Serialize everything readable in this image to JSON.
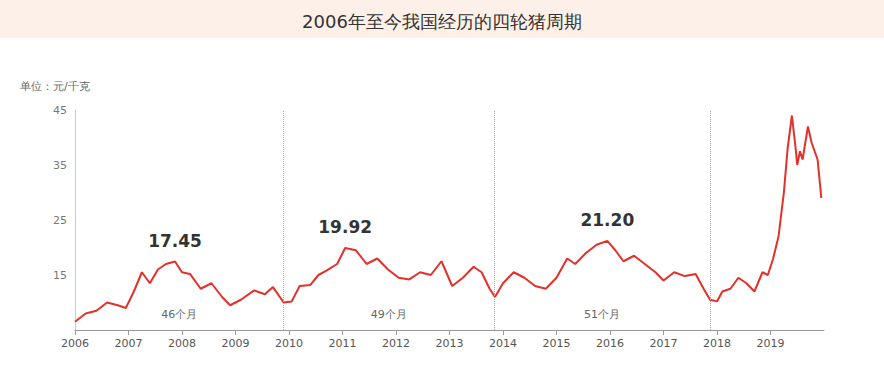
{
  "chart_data": {
    "type": "line",
    "title": "2006年至今我国经历的四轮猪周期",
    "y_label": "单位：元/千克",
    "color": "#e3302b",
    "grid": false,
    "xlim": [
      2006,
      2020
    ],
    "xticks": [
      2006,
      2007,
      2008,
      2009,
      2010,
      2011,
      2012,
      2013,
      2014,
      2015,
      2016,
      2017,
      2018,
      2019
    ],
    "ylim": [
      5,
      45
    ],
    "yticks": [
      15,
      25,
      35,
      45
    ],
    "x": [
      2006.0,
      2006.2,
      2006.4,
      2006.6,
      2006.8,
      2006.95,
      2007.1,
      2007.25,
      2007.4,
      2007.55,
      2007.7,
      2007.87,
      2008.0,
      2008.15,
      2008.35,
      2008.55,
      2008.75,
      2008.9,
      2009.1,
      2009.35,
      2009.55,
      2009.7,
      2009.9,
      2010.05,
      2010.2,
      2010.4,
      2010.55,
      2010.7,
      2010.9,
      2011.05,
      2011.25,
      2011.45,
      2011.65,
      2011.85,
      2012.05,
      2012.25,
      2012.45,
      2012.65,
      2012.85,
      2013.05,
      2013.25,
      2013.45,
      2013.6,
      2013.75,
      2013.85,
      2014.0,
      2014.2,
      2014.4,
      2014.6,
      2014.8,
      2015.0,
      2015.2,
      2015.35,
      2015.55,
      2015.75,
      2015.95,
      2016.1,
      2016.25,
      2016.45,
      2016.65,
      2016.85,
      2017.0,
      2017.2,
      2017.4,
      2017.6,
      2017.75,
      2017.87,
      2018.0,
      2018.1,
      2018.25,
      2018.4,
      2018.55,
      2018.7,
      2018.85,
      2018.95,
      2019.05,
      2019.15,
      2019.25,
      2019.32,
      2019.4,
      2019.47,
      2019.5,
      2019.55,
      2019.6,
      2019.7,
      2019.77,
      2019.88,
      2019.95
    ],
    "values": [
      6.5,
      8,
      8.5,
      10,
      9.5,
      9,
      12,
      15.5,
      13.5,
      16,
      17,
      17.45,
      15.5,
      15.2,
      12.5,
      13.5,
      11,
      9.5,
      10.5,
      12.2,
      11.5,
      12.8,
      10,
      10.2,
      13,
      13.2,
      15,
      15.8,
      17,
      19.92,
      19.5,
      17,
      18,
      16,
      14.5,
      14.2,
      15.5,
      15,
      17.5,
      13,
      14.5,
      16.5,
      15.5,
      12.5,
      11,
      13.5,
      15.5,
      14.5,
      13,
      12.5,
      14.5,
      18,
      17,
      19,
      20.5,
      21.2,
      19.5,
      17.5,
      18.5,
      17,
      15.5,
      14,
      15.5,
      14.8,
      15.2,
      12.5,
      10.5,
      10.2,
      12,
      12.5,
      14.5,
      13.5,
      12,
      15.5,
      15,
      18,
      22,
      30,
      38,
      44,
      38,
      35,
      37.5,
      36,
      42,
      39,
      36,
      29
    ],
    "peaks": [
      {
        "x": 2007.87,
        "value": 17.45,
        "label": "17.45"
      },
      {
        "x": 2011.05,
        "value": 19.92,
        "label": "19.92"
      },
      {
        "x": 2015.95,
        "value": 21.2,
        "label": "21.20"
      }
    ],
    "cycles": [
      {
        "start": 2006,
        "end": 2009.9,
        "label": "46个月"
      },
      {
        "start": 2009.9,
        "end": 2013.83,
        "label": "49个月"
      },
      {
        "start": 2013.83,
        "end": 2017.87,
        "label": "51个月"
      }
    ]
  }
}
